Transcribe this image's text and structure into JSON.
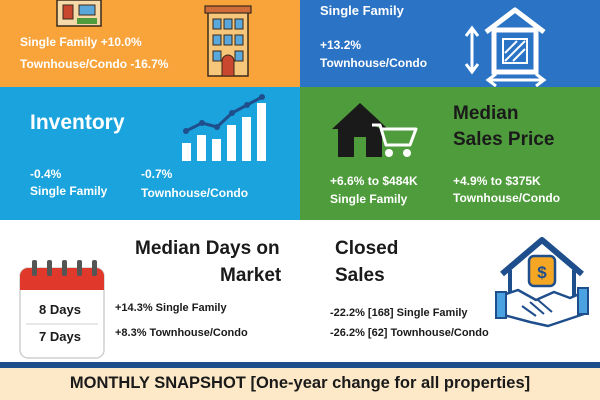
{
  "colors": {
    "orange": "#f9a43b",
    "blue_dark": "#2b73c4",
    "blue_light": "#1aa3dc",
    "green": "#4f9c3c",
    "navy": "#1f4e8c",
    "footer_bg": "#fde9c8"
  },
  "new_listings": {
    "single_family": "Single Family  +10.0%",
    "townhouse": "Townhouse/Condo   -16.7%",
    "icon": "apartment-building-icon"
  },
  "price_per_sqft": {
    "single_family": "Single Family",
    "townhouse_change": "+13.2%",
    "townhouse": "Townhouse/Condo",
    "icon": "house-square-footage-icon"
  },
  "inventory": {
    "title": "Inventory",
    "sf_change": "-0.4%",
    "sf_label": "Single Family",
    "tc_change": "-0.7%",
    "tc_label": "Townhouse/Condo",
    "icon": "rising-bar-chart-icon"
  },
  "median_price": {
    "title_line1": "Median",
    "title_line2": "Sales Price",
    "sf_change": "+6.6% to $484K",
    "sf_label": "Single Family",
    "tc_change": "+4.9% to $375K",
    "tc_label": "Townhouse/Condo",
    "icon": "house-shopping-cart-icon"
  },
  "days_on_market": {
    "title_line1": "Median Days on",
    "title_line2": "Market",
    "sf_days": "8 Days",
    "tc_days": "7 Days",
    "sf_change": "+14.3%  Single Family",
    "tc_change": "+8.3%  Townhouse/Condo",
    "icon": "calendar-icon"
  },
  "closed_sales": {
    "title_line1": "Closed",
    "title_line2": "Sales",
    "sf_change": "-22.2% [168]  Single Family",
    "tc_change": "-26.2% [62]  Townhouse/Condo",
    "icon": "house-handshake-icon"
  },
  "footer": {
    "text": "MONTHLY SNAPSHOT [One-year change for all properties]"
  }
}
